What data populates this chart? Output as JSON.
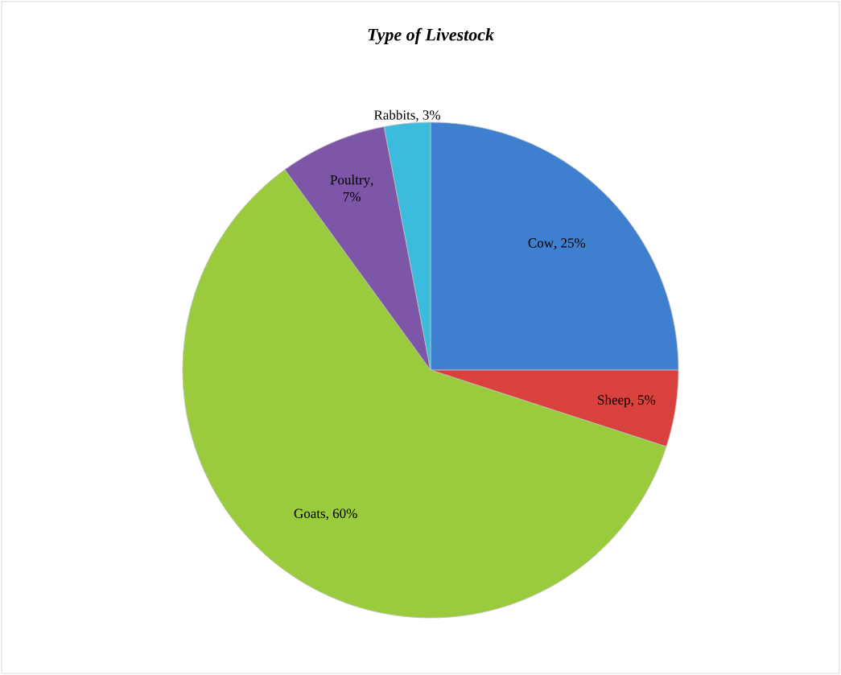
{
  "chart_data": {
    "type": "pie",
    "title": "Type of Livestock",
    "categories": [
      "Cow",
      "Sheep",
      "Goats",
      "Poultry",
      "Rabbits"
    ],
    "values": [
      25,
      5,
      60,
      7,
      3
    ],
    "colors": [
      "#3f7fcf",
      "#d9413c",
      "#9acb3c",
      "#7e56a8",
      "#3cbcdc"
    ],
    "value_labels": [
      ", 25%",
      ", 5%",
      ", 60%",
      ", 7%",
      ", 3%"
    ]
  }
}
